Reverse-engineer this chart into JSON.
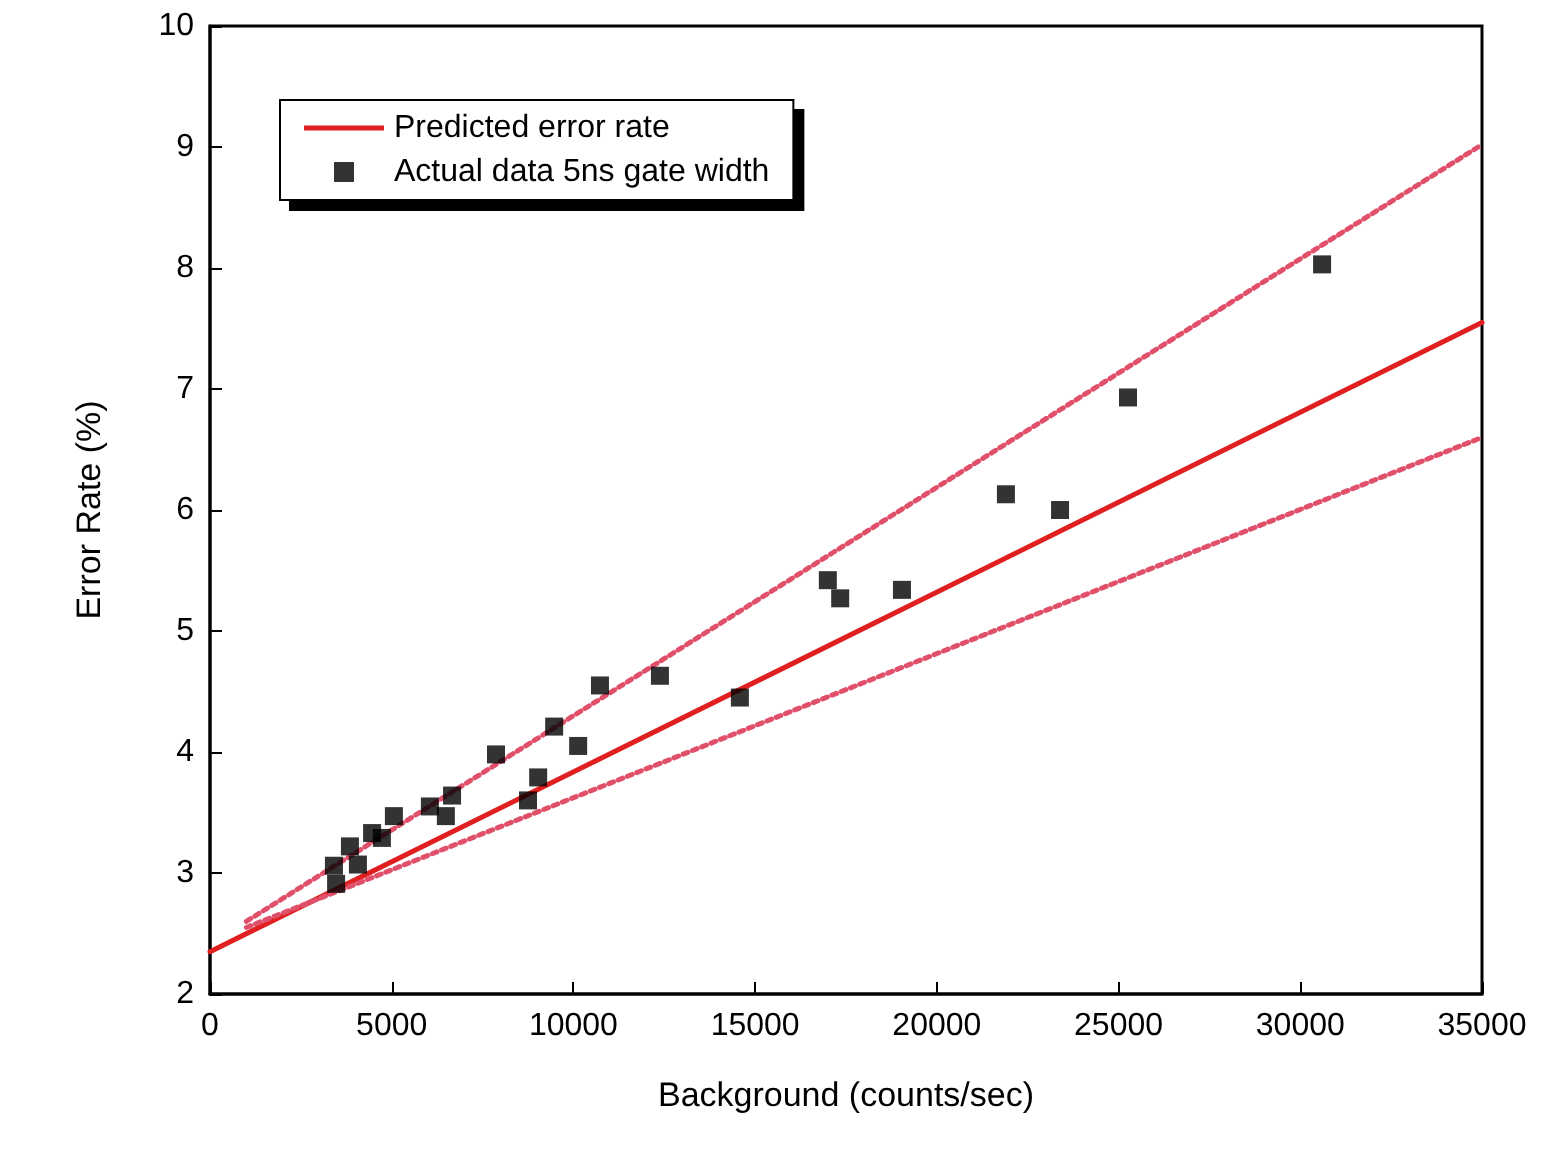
{
  "chart_data": {
    "type": "scatter",
    "xlabel": "Background (counts/sec)",
    "ylabel": "Error Rate (%)",
    "xlim": [
      0,
      35000
    ],
    "xticks": [
      0,
      5000,
      10000,
      15000,
      20000,
      25000,
      30000,
      35000
    ],
    "ylim": [
      2,
      10
    ],
    "yticks": [
      2,
      3,
      4,
      5,
      6,
      7,
      8,
      9,
      10
    ],
    "grid": false,
    "legend": "top left",
    "series": [
      {
        "name": "Predicted error rate",
        "type": "line",
        "color": "#e02020",
        "marker": "none",
        "line_style": "solid",
        "x": [
          0,
          35000
        ],
        "values": [
          2.35,
          7.55
        ]
      },
      {
        "type": "line",
        "color": "#e0506a",
        "marker": "none",
        "line_style": "dotted",
        "x": [
          1000,
          35000
        ],
        "values": [
          2.6,
          9.02
        ]
      },
      {
        "type": "line",
        "color": "#e0506a",
        "marker": "none",
        "line_style": "dotted",
        "x": [
          1000,
          35000
        ],
        "values": [
          2.55,
          6.6
        ]
      },
      {
        "name": "Actual data 5ns gate width",
        "color": "#000000",
        "marker": "square",
        "x": [
          3410,
          3470,
          3850,
          4070,
          4460,
          4730,
          5060,
          6050,
          6490,
          6660,
          7870,
          8750,
          9030,
          9470,
          10130,
          10730,
          12380,
          14580,
          17000,
          17340,
          19040,
          21900,
          23390,
          25260,
          30600
        ],
        "values": [
          3.06,
          2.91,
          3.22,
          3.07,
          3.33,
          3.29,
          3.47,
          3.55,
          3.47,
          3.64,
          3.98,
          3.6,
          3.79,
          4.21,
          4.05,
          4.55,
          4.63,
          4.45,
          5.42,
          5.27,
          5.34,
          6.13,
          6.0,
          6.93,
          8.03
        ]
      }
    ]
  }
}
